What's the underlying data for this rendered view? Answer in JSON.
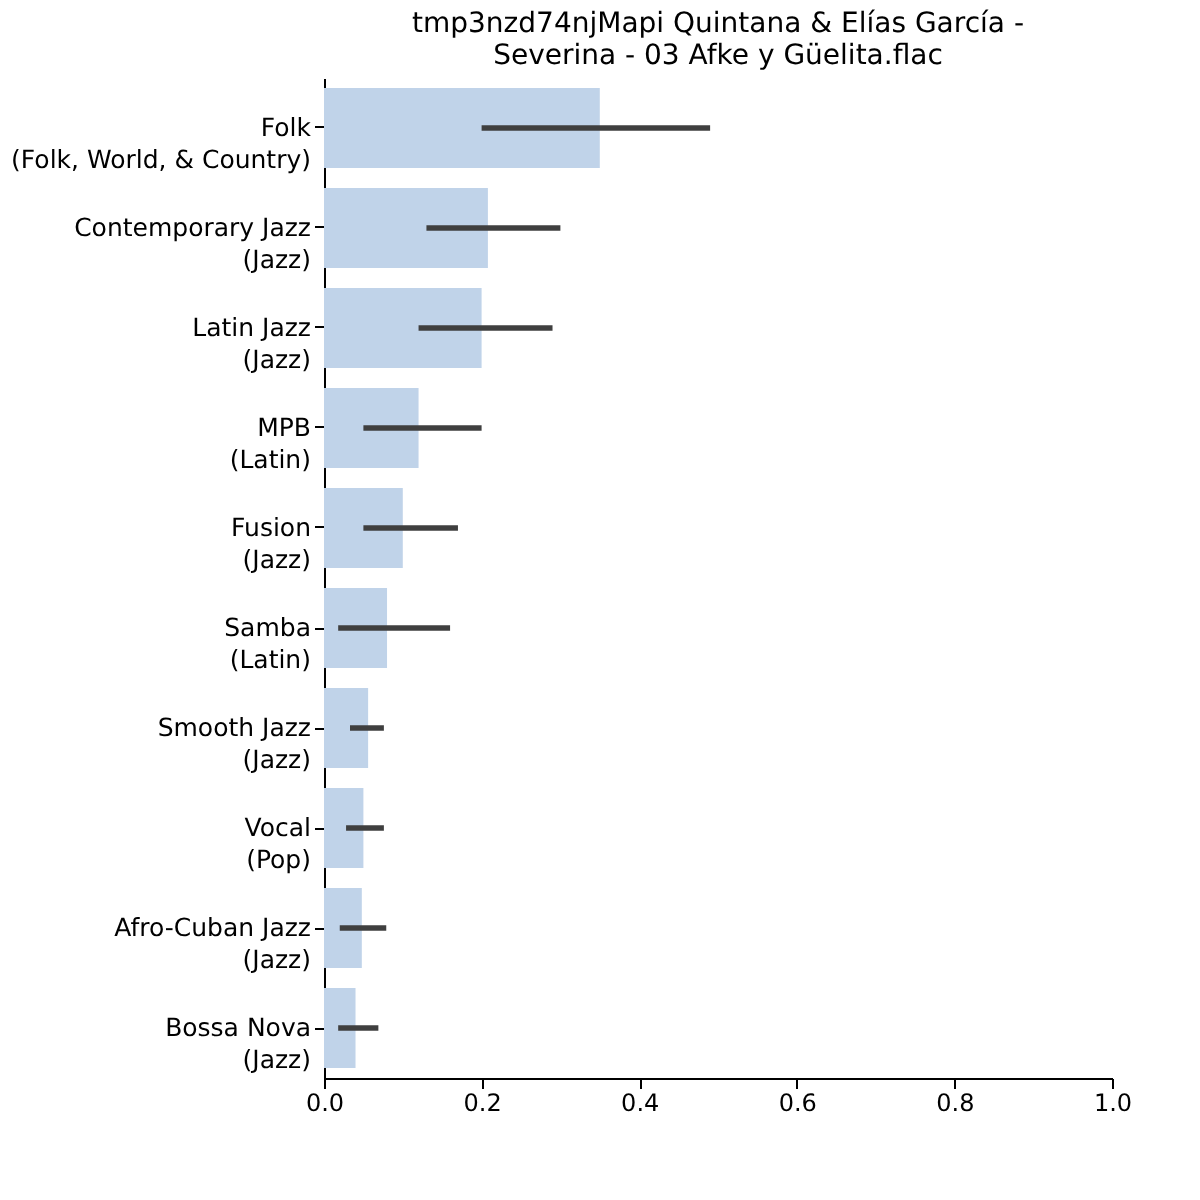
{
  "chart_data": {
    "type": "bar",
    "orientation": "horizontal",
    "title": "tmp3nzd74njMapi Quintana & Elías García -\nSeverina - 03 Afke y Güelita.flac",
    "categories": [
      "Folk\n(Folk, World, & Country)",
      "Contemporary Jazz\n(Jazz)",
      "Latin Jazz\n(Jazz)",
      "MPB\n(Latin)",
      "Fusion\n(Jazz)",
      "Samba\n(Latin)",
      "Smooth Jazz\n(Jazz)",
      "Vocal\n(Pop)",
      "Afro-Cuban Jazz\n(Jazz)",
      "Bossa Nova\n(Jazz)"
    ],
    "values": [
      0.35,
      0.208,
      0.2,
      0.12,
      0.1,
      0.08,
      0.056,
      0.05,
      0.048,
      0.04
    ],
    "errors": [
      [
        0.2,
        0.49
      ],
      [
        0.13,
        0.3
      ],
      [
        0.12,
        0.29
      ],
      [
        0.05,
        0.2
      ],
      [
        0.05,
        0.17
      ],
      [
        0.018,
        0.16
      ],
      [
        0.033,
        0.076
      ],
      [
        0.028,
        0.076
      ],
      [
        0.02,
        0.079
      ],
      [
        0.018,
        0.069
      ]
    ],
    "color": "#c0d3e9",
    "xlim": [
      0,
      1
    ],
    "xticks": [
      {
        "value": 0,
        "label": "0.0"
      },
      0.2,
      0.4,
      0.6,
      0.8,
      {
        "value": 1,
        "label": "1.0"
      }
    ],
    "grid": false
  }
}
